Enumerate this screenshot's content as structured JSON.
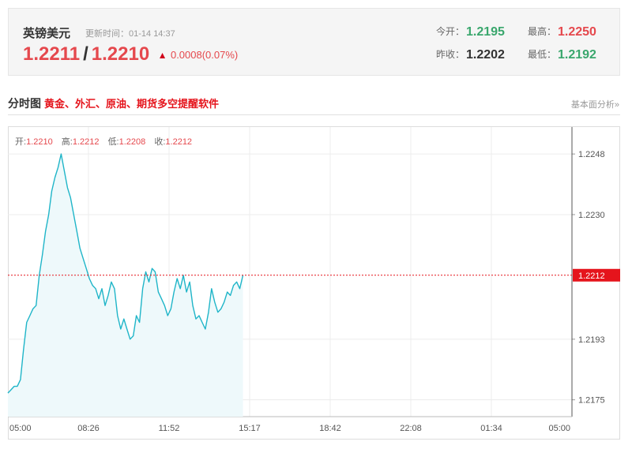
{
  "quote": {
    "name": "英镑美元",
    "update_label": "更新时间：01-14 14:37",
    "bid": "1.2211",
    "separator": "/",
    "ask": "1.2210",
    "change": "0.0008(0.07%)",
    "open_label": "今开：",
    "open_value": "1.2195",
    "high_label": "最高：",
    "high_value": "1.2250",
    "prev_close_label": "昨收：",
    "prev_close_value": "1.2202",
    "low_label": "最低：",
    "low_value": "1.2192",
    "colors": {
      "up": "#e5484d",
      "down": "#3aa76d"
    }
  },
  "section": {
    "title": "分时图",
    "promo": "黄金、外汇、原油、期货多空提醒软件",
    "link": "基本面分析»"
  },
  "ohlc": {
    "open_label": "开:",
    "open": "1.2210",
    "high_label": "高:",
    "high": "1.2212",
    "low_label": "低:",
    "low": "1.2208",
    "close_label": "收:",
    "close": "1.2212"
  },
  "chart_data": {
    "type": "area",
    "x_tick_labels": [
      "05:00",
      "08:26",
      "11:52",
      "15:17",
      "18:42",
      "22:08",
      "01:34",
      "05:00"
    ],
    "y_tick_labels": [
      "1.2248",
      "1.2230",
      "1.2193",
      "1.2175"
    ],
    "current_price_label": "1.2212",
    "current_price": 1.2212,
    "ylim": [
      1.217,
      1.2256
    ],
    "x_range_minutes": [
      0,
      1440
    ],
    "grid": true,
    "colors": {
      "line": "#1fb5c8",
      "fill": "#eef9fb",
      "current": "#e5141c"
    },
    "series": [
      {
        "minutes": [
          0,
          8,
          16,
          24,
          32,
          40,
          48,
          56,
          64,
          72,
          80,
          88,
          96,
          104,
          112,
          120,
          128,
          136,
          144,
          152,
          160,
          168,
          176,
          184,
          192,
          200,
          208,
          216,
          224,
          232,
          240,
          248,
          256,
          264,
          272,
          280,
          288,
          296,
          304,
          312,
          320,
          328,
          336,
          344,
          352,
          360,
          368,
          376,
          384,
          392,
          400,
          408,
          416,
          424,
          432,
          440,
          448,
          456,
          464,
          472,
          480,
          488,
          496,
          504,
          512,
          520,
          528,
          536,
          544,
          552,
          560,
          568,
          576,
          584,
          592,
          600
        ],
        "values": [
          1.2177,
          1.2178,
          1.2179,
          1.2179,
          1.2181,
          1.219,
          1.2198,
          1.22,
          1.2202,
          1.2203,
          1.2212,
          1.2218,
          1.2225,
          1.223,
          1.2237,
          1.2241,
          1.2244,
          1.2248,
          1.2243,
          1.2238,
          1.2235,
          1.223,
          1.2225,
          1.222,
          1.2217,
          1.2214,
          1.2211,
          1.2209,
          1.2208,
          1.2205,
          1.2208,
          1.2203,
          1.2206,
          1.221,
          1.2208,
          1.22,
          1.2196,
          1.2199,
          1.2196,
          1.2193,
          1.2194,
          1.22,
          1.2198,
          1.2208,
          1.2213,
          1.221,
          1.2214,
          1.2213,
          1.2207,
          1.2205,
          1.2203,
          1.22,
          1.2202,
          1.2207,
          1.2211,
          1.2208,
          1.2212,
          1.2207,
          1.221,
          1.2203,
          1.2199,
          1.22,
          1.2198,
          1.2196,
          1.2201,
          1.2208,
          1.2204,
          1.2201,
          1.2202,
          1.2204,
          1.2207,
          1.2206,
          1.2209,
          1.221,
          1.2208,
          1.2212
        ]
      }
    ]
  }
}
